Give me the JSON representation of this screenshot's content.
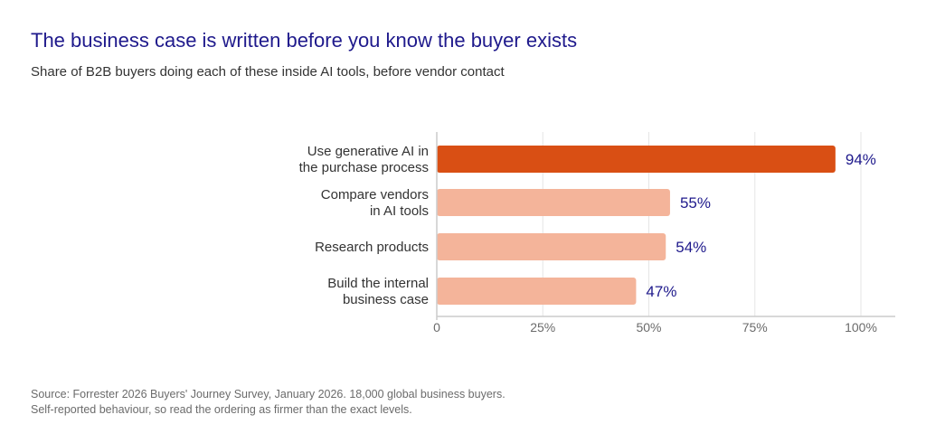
{
  "title": "The business case is written before you know the buyer exists",
  "subtitle": "Share of B2B buyers doing each of these inside AI tools, before vendor contact",
  "source": {
    "line1": "Source: Forrester 2026 Buyers' Journey Survey, January 2026. 18,000 global business buyers.",
    "line2": "Self-reported behaviour, so read the ordering as firmer than the exact levels."
  },
  "colors": {
    "highlight": "#d94f14",
    "bar": "#f4b49a",
    "value_label": "#1f1a8c",
    "category_label": "#333333",
    "tick_label": "#6b6b6b"
  },
  "chart_data": {
    "type": "bar",
    "orientation": "horizontal",
    "categories": [
      [
        "Use generative AI in",
        "the purchase process"
      ],
      [
        "Compare vendors",
        "in AI tools"
      ],
      [
        "Research products"
      ],
      [
        "Build the internal",
        "business case"
      ]
    ],
    "values": [
      94,
      55,
      54,
      47
    ],
    "value_labels": [
      "94%",
      "55%",
      "54%",
      "47%"
    ],
    "highlighted_index": 0,
    "xlim": [
      0,
      100
    ],
    "xticks": [
      0,
      25,
      50,
      75,
      100
    ],
    "xtick_labels": [
      "0",
      "25%",
      "50%",
      "75%",
      "100%"
    ],
    "grid": true
  }
}
